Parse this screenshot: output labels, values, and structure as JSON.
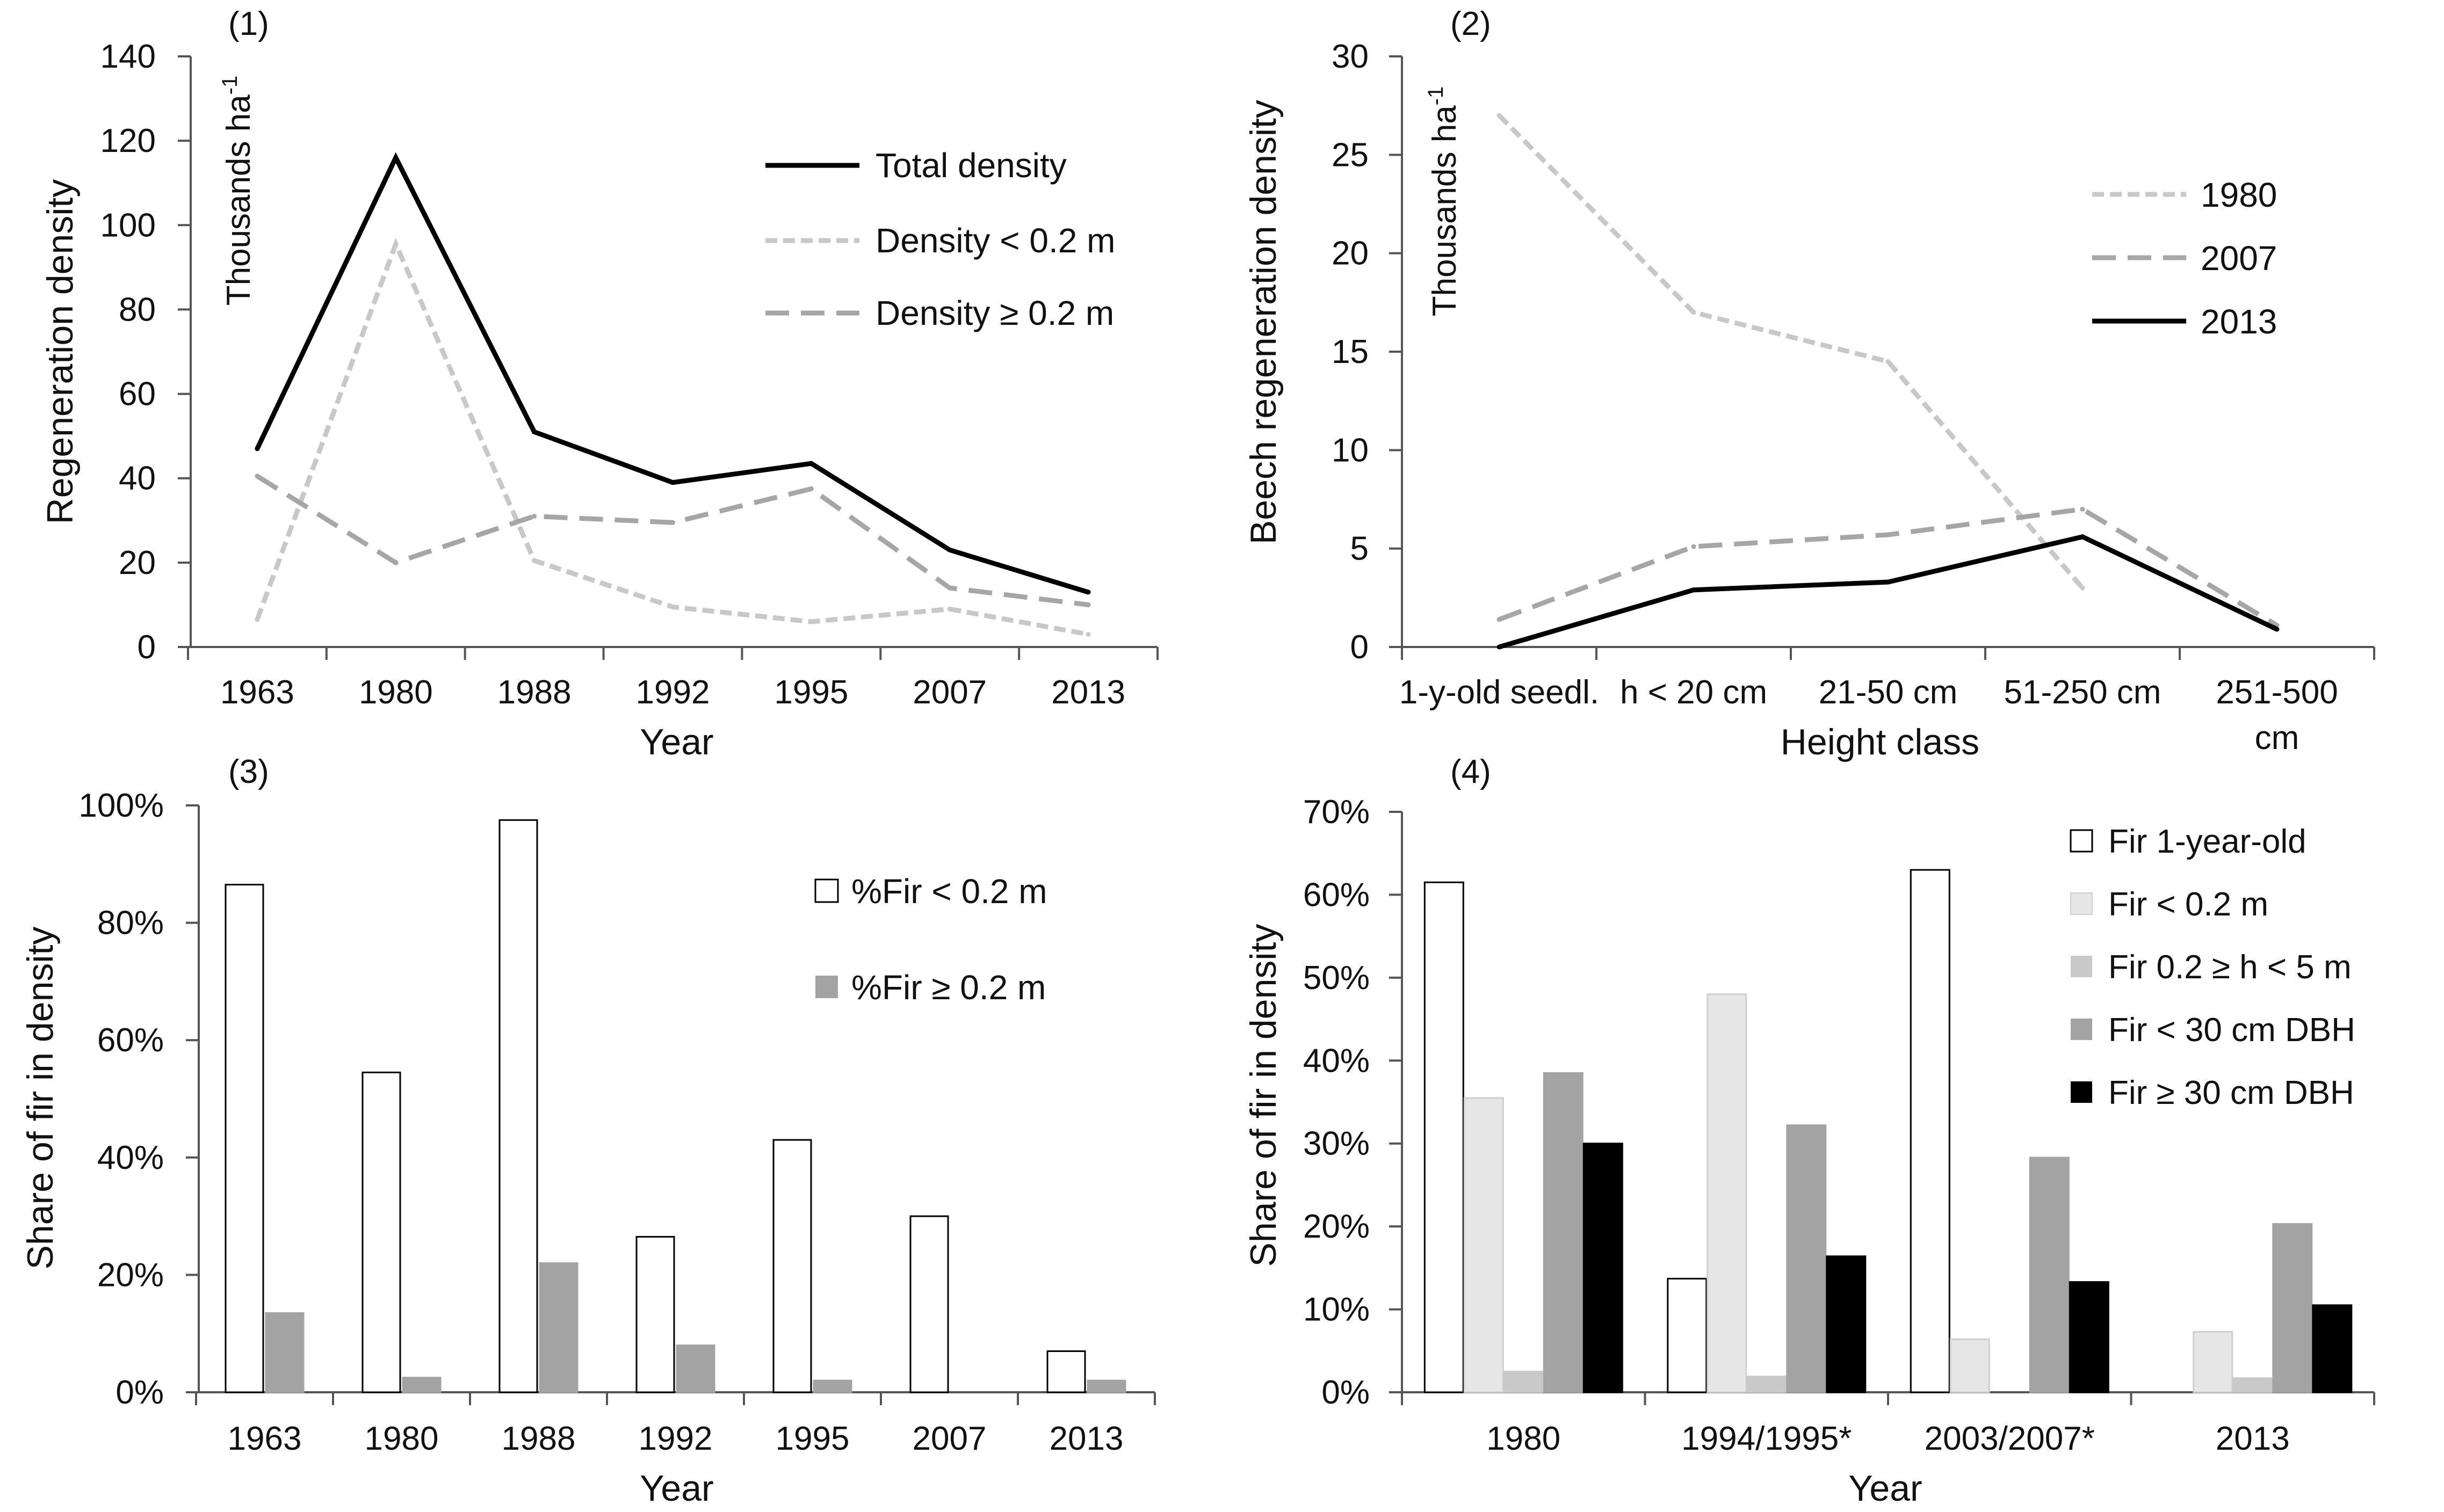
{
  "colors": {
    "axis": "#555555",
    "black": "#000000",
    "light": "#c8c8c8",
    "mid": "#a6a6a6",
    "pale": "#e6e6e6",
    "silver": "#c9c9c9",
    "gray": "#a3a3a3"
  },
  "chart_data": [
    {
      "id": "p1",
      "panel_label": "(1)",
      "type": "line",
      "categories": [
        "1963",
        "1980",
        "1988",
        "1992",
        "1995",
        "2007",
        "2013"
      ],
      "xlabel": "Year",
      "ylabel": "Regeneration density",
      "units": "Thousands ha",
      "units_sup": "-1",
      "ylim": [
        0,
        140
      ],
      "yticks": [
        "0",
        "20",
        "40",
        "60",
        "80",
        "100",
        "120",
        "140"
      ],
      "series": [
        {
          "name": "Total density",
          "values": [
            47,
            116,
            51,
            39,
            43.5,
            23,
            13
          ],
          "style": "solid",
          "color": "#000000"
        },
        {
          "name": "Density < 0.2 m",
          "values": [
            6.5,
            95.5,
            20.5,
            9.5,
            6,
            9,
            3
          ],
          "style": "dotted",
          "color": "#c8c8c8"
        },
        {
          "name": "Density ≥ 0.2 m",
          "values": [
            40.5,
            20,
            31,
            29.5,
            37.5,
            14,
            10
          ],
          "style": "dashed",
          "color": "#a6a6a6"
        }
      ]
    },
    {
      "id": "p2",
      "panel_label": "(2)",
      "type": "line",
      "categories": [
        "1-y-old seedl.",
        "h < 20 cm",
        "21-50 cm",
        "51-250 cm",
        "251-500 cm"
      ],
      "xlabel": "Height class",
      "ylabel": "Beech regeneration density",
      "units": "Thousands ha",
      "units_sup": "-1",
      "ylim": [
        0,
        30
      ],
      "yticks": [
        "0",
        "5",
        "10",
        "15",
        "20",
        "25",
        "30"
      ],
      "series": [
        {
          "name": "1980",
          "values": [
            27,
            17,
            14.5,
            3,
            null
          ],
          "style": "dotted",
          "color": "#c8c8c8"
        },
        {
          "name": "2007",
          "values": [
            1.4,
            5.1,
            5.7,
            7,
            1.1
          ],
          "style": "dashed",
          "color": "#a6a6a6"
        },
        {
          "name": "2013",
          "values": [
            0,
            2.9,
            3.3,
            5.6,
            0.9
          ],
          "style": "solid",
          "color": "#000000"
        }
      ]
    },
    {
      "id": "p3",
      "panel_label": "(3)",
      "type": "bar",
      "categories": [
        "1963",
        "1980",
        "1988",
        "1992",
        "1995",
        "2007",
        "2013"
      ],
      "xlabel": "Year",
      "ylabel": "Share of fir in density",
      "ylim": [
        0,
        100
      ],
      "yticks": [
        "0%",
        "20%",
        "40%",
        "60%",
        "80%",
        "100%"
      ],
      "series": [
        {
          "name": "%Fir < 0.2 m",
          "values": [
            86.5,
            54.5,
            97.5,
            26.5,
            43,
            30,
            7
          ],
          "fill": "#ffffff"
        },
        {
          "name": "%Fir ≥ 0.2 m",
          "values": [
            13.5,
            2.5,
            22,
            8,
            2,
            0,
            2
          ],
          "fill": "#a3a3a3"
        }
      ]
    },
    {
      "id": "p4",
      "panel_label": "(4)",
      "type": "bar",
      "categories": [
        "1980",
        "1994/1995*",
        "2003/2007*",
        "2013"
      ],
      "xlabel": "Year",
      "ylabel": "Share of fir in density",
      "ylim": [
        0,
        70
      ],
      "yticks": [
        "0%",
        "10%",
        "20%",
        "30%",
        "40%",
        "50%",
        "60%",
        "70%"
      ],
      "series": [
        {
          "name": "Fir 1-year-old",
          "values": [
            61.5,
            13.7,
            63,
            0
          ],
          "fill": "#ffffff"
        },
        {
          "name": "Fir < 0.2 m",
          "values": [
            35.5,
            48,
            6.4,
            7.3
          ],
          "fill": "#e6e6e6"
        },
        {
          "name": "Fir 0.2 ≥ h < 5 m",
          "values": [
            2.5,
            1.9,
            0,
            1.7
          ],
          "fill": "#c9c9c9"
        },
        {
          "name": "Fir < 30 cm DBH",
          "values": [
            38.5,
            32.2,
            28.3,
            20.3
          ],
          "fill": "#a3a3a3"
        },
        {
          "name": "Fir ≥ 30 cm DBH",
          "values": [
            30,
            16.4,
            13.3,
            10.5
          ],
          "fill": "#000000"
        }
      ]
    }
  ]
}
